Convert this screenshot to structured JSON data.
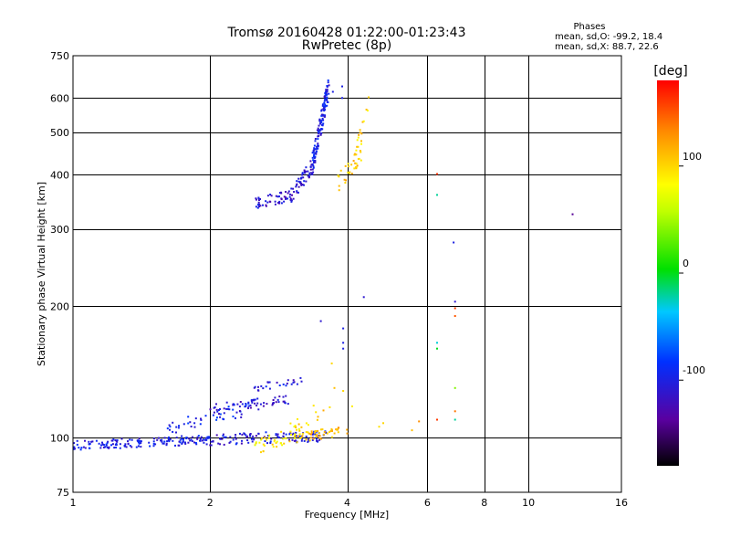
{
  "chart_data": {
    "type": "scatter",
    "title": "Tromsø 20160428 01:22:00-01:23:43",
    "subtitle": "RwPretec (8p)",
    "xlabel": "Frequency [MHz]",
    "ylabel": "Stationary phase Virtual Height [km]",
    "x_scale": "log",
    "y_scale": "log",
    "xlim": [
      1,
      16
    ],
    "ylim": [
      75,
      750
    ],
    "x_ticks": [
      1,
      2,
      4,
      6,
      8,
      10,
      16
    ],
    "y_ticks": [
      75,
      100,
      200,
      300,
      400,
      500,
      600,
      750
    ],
    "stats": {
      "heading": "Phases",
      "line_o": "mean, sd,O: -99.2, 18.4",
      "line_x": "mean, sd,X:  88.7, 22.6"
    },
    "colorbar": {
      "label": "[deg]",
      "range": [
        -180,
        180
      ],
      "ticks": [
        "100",
        "0",
        "-100"
      ],
      "tick_values": [
        100,
        0,
        -100
      ]
    },
    "traces": [
      {
        "x0": 1.0,
        "x1": 2.0,
        "y0": 96,
        "y1": 99,
        "phase": -100,
        "n": 160,
        "jy": 0.025
      },
      {
        "x0": 2.0,
        "x1": 3.6,
        "y0": 99,
        "y1": 101,
        "phase": -105,
        "n": 110,
        "jy": 0.03
      },
      {
        "x0": 1.6,
        "x1": 2.5,
        "y0": 104,
        "y1": 118,
        "phase": -95,
        "n": 45,
        "jy": 0.04
      },
      {
        "x0": 2.0,
        "x1": 3.0,
        "y0": 116,
        "y1": 122,
        "phase": -110,
        "n": 60,
        "jy": 0.03
      },
      {
        "x0": 2.5,
        "x1": 3.2,
        "y0": 130,
        "y1": 136,
        "phase": -105,
        "n": 25,
        "jy": 0.02
      },
      {
        "x0": 2.5,
        "x1": 3.2,
        "y0": 95,
        "y1": 104,
        "phase": 90,
        "n": 45,
        "jy": 0.04
      },
      {
        "x0": 3.1,
        "x1": 4.0,
        "y0": 100,
        "y1": 104,
        "phase": 110,
        "n": 50,
        "jy": 0.025
      },
      {
        "x0": 3.0,
        "x1": 3.7,
        "y0": 105,
        "y1": 120,
        "phase": 100,
        "n": 12,
        "jy": 0.05
      },
      {
        "x0": 2.5,
        "x1": 3.0,
        "y0": 345,
        "y1": 358,
        "phase": -110,
        "n": 50,
        "jy": 0.03
      },
      {
        "x0": 3.0,
        "x1": 3.35,
        "y0": 355,
        "y1": 420,
        "phase": -110,
        "n": 55,
        "jy": 0.04
      },
      {
        "x0": 3.35,
        "x1": 3.65,
        "y0": 420,
        "y1": 640,
        "phase": -100,
        "n": 130,
        "jy": 0.06
      },
      {
        "x0": 3.8,
        "x1": 4.3,
        "y0": 380,
        "y1": 450,
        "phase": 105,
        "n": 35,
        "jy": 0.05
      },
      {
        "x0": 4.2,
        "x1": 4.5,
        "y0": 450,
        "y1": 590,
        "phase": 100,
        "n": 15,
        "jy": 0.06
      }
    ],
    "points": [
      {
        "x": 3.72,
        "y": 620,
        "phase": -100
      },
      {
        "x": 3.9,
        "y": 638,
        "phase": -100
      },
      {
        "x": 3.9,
        "y": 600,
        "phase": -100
      },
      {
        "x": 3.5,
        "y": 185,
        "phase": -110
      },
      {
        "x": 3.92,
        "y": 165,
        "phase": -100
      },
      {
        "x": 3.92,
        "y": 178,
        "phase": -100
      },
      {
        "x": 3.92,
        "y": 160,
        "phase": -100
      },
      {
        "x": 4.35,
        "y": 210,
        "phase": -110
      },
      {
        "x": 3.7,
        "y": 148,
        "phase": 100
      },
      {
        "x": 3.75,
        "y": 130,
        "phase": 110
      },
      {
        "x": 3.92,
        "y": 128,
        "phase": 100
      },
      {
        "x": 4.1,
        "y": 118,
        "phase": 90
      },
      {
        "x": 4.7,
        "y": 106,
        "phase": 95
      },
      {
        "x": 4.8,
        "y": 108,
        "phase": 100
      },
      {
        "x": 5.55,
        "y": 104,
        "phase": 110
      },
      {
        "x": 5.75,
        "y": 109,
        "phase": 130
      },
      {
        "x": 6.3,
        "y": 402,
        "phase": 160
      },
      {
        "x": 6.3,
        "y": 360,
        "phase": -20
      },
      {
        "x": 6.3,
        "y": 165,
        "phase": -30
      },
      {
        "x": 6.3,
        "y": 160,
        "phase": 0
      },
      {
        "x": 6.3,
        "y": 110,
        "phase": 160
      },
      {
        "x": 6.85,
        "y": 280,
        "phase": -100
      },
      {
        "x": 6.9,
        "y": 205,
        "phase": -110
      },
      {
        "x": 6.9,
        "y": 198,
        "phase": 160
      },
      {
        "x": 6.9,
        "y": 190,
        "phase": 150
      },
      {
        "x": 6.9,
        "y": 130,
        "phase": 40
      },
      {
        "x": 6.9,
        "y": 115,
        "phase": 140
      },
      {
        "x": 6.9,
        "y": 110,
        "phase": -20
      },
      {
        "x": 12.5,
        "y": 325,
        "phase": -140
      }
    ]
  }
}
